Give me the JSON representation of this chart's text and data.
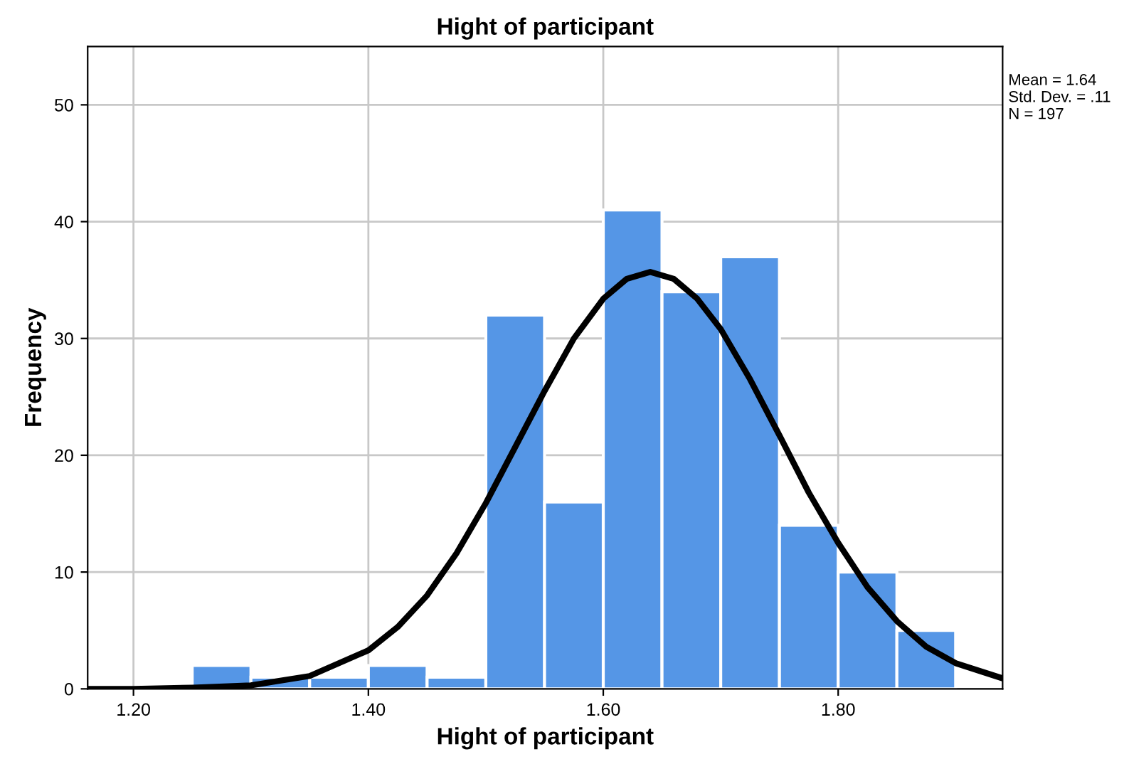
{
  "chart_data": {
    "type": "histogram",
    "title": "Hight of participant",
    "xlabel": "Hight of participant",
    "ylabel": "Frequency",
    "annotations": [
      "Mean = 1.64\nStd. Dev. = .11\nN = 197"
    ],
    "xlim": [
      1.161,
      1.94
    ],
    "ylim": [
      0,
      55
    ],
    "xticks": [
      {
        "value": 1.2,
        "label": "1.20"
      },
      {
        "value": 1.4,
        "label": "1.40"
      },
      {
        "value": 1.6,
        "label": "1.60"
      },
      {
        "value": 1.8,
        "label": "1.80"
      }
    ],
    "yticks": [
      0,
      10,
      20,
      30,
      40,
      50
    ],
    "grid": true,
    "series": [
      {
        "color": "#5596e6",
        "bins": [
          1.25,
          1.3,
          1.35,
          1.4,
          1.45,
          1.5,
          1.55,
          1.6,
          1.65,
          1.7,
          1.75,
          1.8,
          1.85,
          1.9
        ],
        "values": [
          2,
          1,
          1,
          2,
          1,
          32,
          16,
          41,
          34,
          37,
          14,
          10,
          5
        ]
      },
      {
        "type": "line",
        "color": "#000000",
        "x": [
          1.161,
          1.2,
          1.25,
          1.3,
          1.35,
          1.4,
          1.425,
          1.45,
          1.475,
          1.5,
          1.525,
          1.55,
          1.575,
          1.6,
          1.62,
          1.64,
          1.66,
          1.68,
          1.7,
          1.725,
          1.75,
          1.775,
          1.8,
          1.825,
          1.85,
          1.875,
          1.9,
          1.94
        ],
        "values": [
          0,
          0,
          0.1,
          0.3,
          1.1,
          3.3,
          5.3,
          8,
          11.6,
          15.9,
          20.7,
          25.5,
          30,
          33.4,
          35.1,
          35.7,
          35.1,
          33.4,
          30.8,
          26.5,
          21.7,
          16.8,
          12.5,
          8.7,
          5.8,
          3.6,
          2.2,
          0.9
        ]
      }
    ]
  }
}
